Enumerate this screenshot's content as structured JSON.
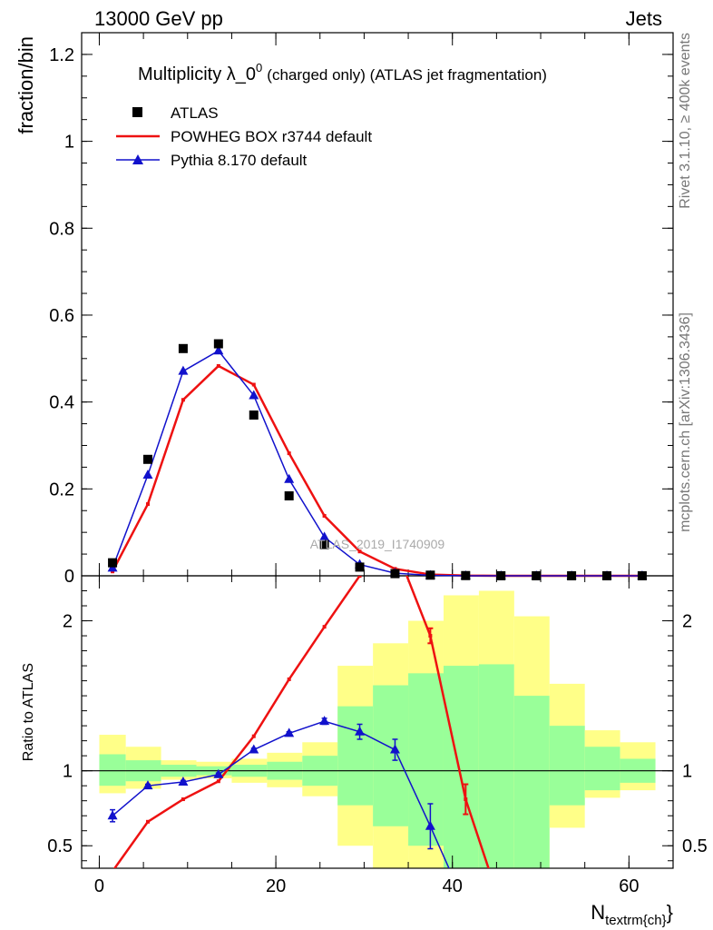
{
  "header": {
    "left": "13000 GeV pp",
    "right": "Jets"
  },
  "side_labels": {
    "rivet": "Rivet 3.1.10, ≥ 400k events",
    "mcplots": "mcplots.cern.ch [arXiv:1306.3436]"
  },
  "chart_data": {
    "type": "scatter",
    "title": "Multiplicity λ_0",
    "title_sup": "0",
    "title_suffix": "(charged only) (ATLAS jet fragmentation)",
    "ylabel": "fraction/bin",
    "ratio_ylabel": "Ratio to ATLAS",
    "xlabel": "N",
    "xlabel_sub": "textrm{ch}",
    "xlabel_close": "}",
    "watermark": "ATLAS_2019_I1740909",
    "xlim": [
      -2,
      65
    ],
    "ylim": [
      0,
      1.25
    ],
    "ratio_ylim": [
      0.35,
      2.3
    ],
    "x_ticks": [
      0,
      20,
      40,
      60
    ],
    "x_tick_labels": [
      "0",
      "20",
      "40",
      "60"
    ],
    "y_ticks": [
      0,
      0.2,
      0.4,
      0.6,
      0.8,
      1,
      1.2
    ],
    "y_tick_labels": [
      "0",
      "0.2",
      "0.4",
      "0.6",
      "0.8",
      "1",
      "1.2"
    ],
    "ratio_ticks": [
      0.5,
      1,
      2
    ],
    "ratio_tick_labels": [
      "0.5",
      "1",
      "2"
    ],
    "legend": [
      "ATLAS",
      "POWHEG BOX r3744 default",
      "Pythia 8.170 default"
    ],
    "colors": {
      "data": "#000000",
      "powheg": "#ee1111",
      "pythia": "#1111cc",
      "band_inner": "#99ff99",
      "band_outer": "#ffff88"
    },
    "x": [
      1.5,
      5.5,
      9.5,
      13.5,
      17.5,
      21.5,
      25.5,
      29.5,
      33.5,
      37.5,
      41.5,
      45.5,
      49.5,
      53.5,
      57.5,
      61.5
    ],
    "series": [
      {
        "name": "ATLAS",
        "values": [
          0.03,
          0.268,
          0.523,
          0.534,
          0.37,
          0.184,
          0.072,
          0.02,
          0.005,
          0.0015,
          0.0005,
          0.0001,
          0.0,
          0.0,
          0.0,
          0.0
        ]
      },
      {
        "name": "POWHEG BOX r3744 default",
        "values": [
          0.01,
          0.165,
          0.405,
          0.483,
          0.44,
          0.282,
          0.138,
          0.056,
          0.016,
          0.003,
          0.0004,
          0.0,
          0.0,
          0.0,
          0.0,
          0.0
        ]
      },
      {
        "name": "Pythia 8.170 default",
        "values": [
          0.018,
          0.232,
          0.471,
          0.518,
          0.415,
          0.222,
          0.089,
          0.026,
          0.006,
          0.001,
          0.0001,
          0.0,
          0.0,
          0.0,
          0.0,
          0.0
        ]
      }
    ],
    "ratio": {
      "bins": [
        [
          0,
          3
        ],
        [
          3,
          7
        ],
        [
          7,
          11
        ],
        [
          11,
          15
        ],
        [
          15,
          19
        ],
        [
          19,
          23
        ],
        [
          23,
          27
        ],
        [
          27,
          31
        ],
        [
          31,
          35
        ],
        [
          35,
          39
        ],
        [
          39,
          43
        ],
        [
          43,
          47
        ],
        [
          47,
          51
        ],
        [
          51,
          55
        ],
        [
          55,
          59
        ],
        [
          59,
          63
        ]
      ],
      "inner_low": [
        0.9,
        0.93,
        0.96,
        0.97,
        0.96,
        0.94,
        0.9,
        0.77,
        0.63,
        0.5,
        0.3,
        0.3,
        0.32,
        0.77,
        0.87,
        0.92
      ],
      "inner_high": [
        1.11,
        1.07,
        1.04,
        1.03,
        1.04,
        1.06,
        1.1,
        1.43,
        1.57,
        1.65,
        1.7,
        1.71,
        1.5,
        1.3,
        1.16,
        1.08
      ],
      "outer_low": [
        0.85,
        0.88,
        0.94,
        0.95,
        0.92,
        0.89,
        0.83,
        0.5,
        0.35,
        0.3,
        0.3,
        0.3,
        0.3,
        0.62,
        0.82,
        0.87
      ],
      "outer_high": [
        1.24,
        1.16,
        1.07,
        1.06,
        1.08,
        1.12,
        1.19,
        1.7,
        1.85,
        2.0,
        2.17,
        2.2,
        2.03,
        1.58,
        1.27,
        1.19
      ],
      "powheg": [
        0.33,
        0.66,
        0.81,
        0.93,
        1.23,
        1.61,
        1.96,
        2.3,
        2.5,
        1.9,
        0.81,
        0.1
      ],
      "powheg_err": [
        0,
        0,
        0,
        0,
        0,
        0,
        0,
        0,
        0,
        0.05,
        0.1,
        0
      ],
      "pythia": [
        0.7,
        0.9,
        0.925,
        0.975,
        1.14,
        1.25,
        1.33,
        1.26,
        1.14,
        0.63,
        0.1
      ],
      "pythia_err": [
        0.04,
        0.01,
        0.01,
        0.01,
        0.01,
        0.01,
        0.02,
        0.05,
        0.07,
        0.15,
        0
      ]
    }
  }
}
